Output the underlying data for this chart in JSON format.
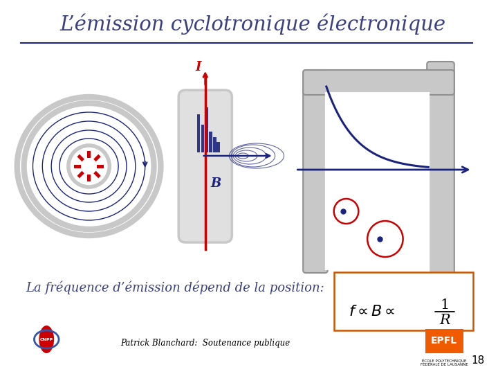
{
  "title": "L’émission cyclotronique électronique",
  "subtitle_text": "La fréquence d’émission dépend de la position:",
  "footer_text": "Patrick Blanchard:  Soutenance publique",
  "slide_number": "18",
  "bg_color": "#ffffff",
  "title_color": "#3a4080",
  "navy": "#1a237e",
  "red_color": "#cc0000",
  "gray_color": "#aaaaaa",
  "gray_fill": "#c8c8c8"
}
